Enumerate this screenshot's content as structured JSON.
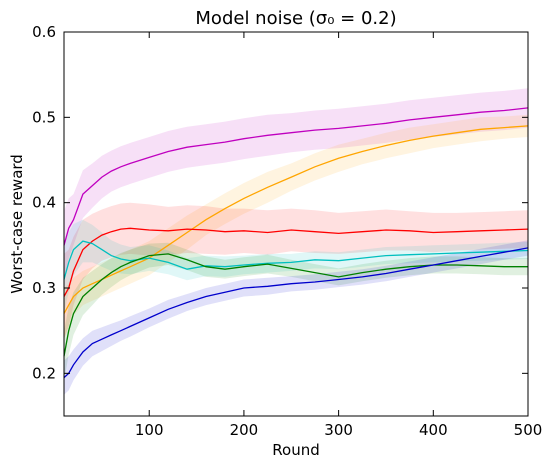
{
  "chart_data": {
    "type": "line",
    "title": "Model noise (σ₀ = 0.2)",
    "xlabel": "Round",
    "ylabel": "Worst-case reward",
    "xlim": [
      10,
      500
    ],
    "ylim": [
      0.15,
      0.6
    ],
    "xticks": [
      100,
      200,
      300,
      400,
      500
    ],
    "yticks": [
      0.2,
      0.3,
      0.4,
      0.5,
      0.6
    ],
    "grid": false,
    "legend": "none",
    "x": [
      10,
      15,
      20,
      30,
      40,
      50,
      60,
      70,
      80,
      100,
      120,
      140,
      160,
      180,
      200,
      225,
      250,
      275,
      300,
      325,
      350,
      375,
      400,
      425,
      450,
      475,
      500
    ],
    "series": [
      {
        "color": "#bf00bf",
        "values": [
          0.35,
          0.37,
          0.38,
          0.41,
          0.42,
          0.43,
          0.437,
          0.442,
          0.446,
          0.453,
          0.46,
          0.465,
          0.468,
          0.471,
          0.475,
          0.479,
          0.482,
          0.485,
          0.487,
          0.49,
          0.493,
          0.497,
          0.5,
          0.503,
          0.506,
          0.508,
          0.511
        ],
        "band": [
          0.04,
          0.035,
          0.03,
          0.028,
          0.026,
          0.025,
          0.024,
          0.024,
          0.024,
          0.024,
          0.024,
          0.024,
          0.024,
          0.024,
          0.024,
          0.024,
          0.023,
          0.023,
          0.023,
          0.023,
          0.023,
          0.023,
          0.023,
          0.023,
          0.023,
          0.023,
          0.023
        ]
      },
      {
        "color": "#ffa500",
        "values": [
          0.27,
          0.28,
          0.29,
          0.3,
          0.305,
          0.31,
          0.315,
          0.32,
          0.325,
          0.335,
          0.35,
          0.365,
          0.38,
          0.393,
          0.405,
          0.418,
          0.43,
          0.442,
          0.452,
          0.46,
          0.467,
          0.473,
          0.478,
          0.482,
          0.486,
          0.488,
          0.49
        ],
        "band": [
          0.03,
          0.025,
          0.022,
          0.02,
          0.02,
          0.02,
          0.02,
          0.02,
          0.02,
          0.02,
          0.02,
          0.02,
          0.018,
          0.018,
          0.018,
          0.018,
          0.016,
          0.016,
          0.016,
          0.015,
          0.015,
          0.015,
          0.014,
          0.014,
          0.014,
          0.013,
          0.013
        ]
      },
      {
        "color": "#ff0000",
        "values": [
          0.29,
          0.3,
          0.32,
          0.345,
          0.355,
          0.362,
          0.366,
          0.369,
          0.37,
          0.368,
          0.367,
          0.369,
          0.368,
          0.366,
          0.367,
          0.365,
          0.368,
          0.366,
          0.364,
          0.366,
          0.368,
          0.367,
          0.365,
          0.366,
          0.367,
          0.368,
          0.369
        ],
        "band": [
          0.05,
          0.045,
          0.04,
          0.035,
          0.032,
          0.03,
          0.03,
          0.03,
          0.03,
          0.03,
          0.028,
          0.028,
          0.028,
          0.027,
          0.026,
          0.026,
          0.025,
          0.025,
          0.024,
          0.024,
          0.024,
          0.023,
          0.023,
          0.022,
          0.022,
          0.022,
          0.022
        ]
      },
      {
        "color": "#00bfbf",
        "values": [
          0.31,
          0.33,
          0.345,
          0.355,
          0.352,
          0.345,
          0.338,
          0.334,
          0.332,
          0.335,
          0.33,
          0.322,
          0.326,
          0.325,
          0.327,
          0.329,
          0.33,
          0.333,
          0.332,
          0.335,
          0.338,
          0.339,
          0.34,
          0.341,
          0.342,
          0.343,
          0.344
        ],
        "band": [
          0.04,
          0.035,
          0.03,
          0.025,
          0.022,
          0.02,
          0.018,
          0.017,
          0.016,
          0.015,
          0.014,
          0.013,
          0.012,
          0.012,
          0.011,
          0.011,
          0.01,
          0.01,
          0.01,
          0.01,
          0.01,
          0.01,
          0.01,
          0.01,
          0.01,
          0.01,
          0.01
        ]
      },
      {
        "color": "#008000",
        "values": [
          0.22,
          0.25,
          0.27,
          0.29,
          0.3,
          0.31,
          0.318,
          0.325,
          0.33,
          0.338,
          0.34,
          0.333,
          0.325,
          0.322,
          0.325,
          0.328,
          0.323,
          0.318,
          0.313,
          0.318,
          0.322,
          0.325,
          0.327,
          0.327,
          0.326,
          0.325,
          0.325
        ],
        "band": [
          0.03,
          0.028,
          0.025,
          0.022,
          0.02,
          0.018,
          0.017,
          0.016,
          0.015,
          0.014,
          0.013,
          0.012,
          0.012,
          0.011,
          0.011,
          0.011,
          0.01,
          0.01,
          0.01,
          0.01,
          0.01,
          0.01,
          0.01,
          0.01,
          0.01,
          0.01,
          0.01
        ]
      },
      {
        "color": "#0000cc",
        "values": [
          0.195,
          0.2,
          0.21,
          0.225,
          0.235,
          0.24,
          0.245,
          0.25,
          0.255,
          0.265,
          0.275,
          0.283,
          0.29,
          0.295,
          0.3,
          0.302,
          0.305,
          0.307,
          0.31,
          0.313,
          0.317,
          0.322,
          0.327,
          0.332,
          0.337,
          0.342,
          0.347
        ],
        "band": [
          0.02,
          0.02,
          0.018,
          0.016,
          0.015,
          0.014,
          0.013,
          0.012,
          0.012,
          0.011,
          0.011,
          0.01,
          0.01,
          0.01,
          0.01,
          0.01,
          0.009,
          0.009,
          0.009,
          0.009,
          0.009,
          0.009,
          0.009,
          0.009,
          0.009,
          0.009,
          0.009
        ]
      }
    ]
  }
}
